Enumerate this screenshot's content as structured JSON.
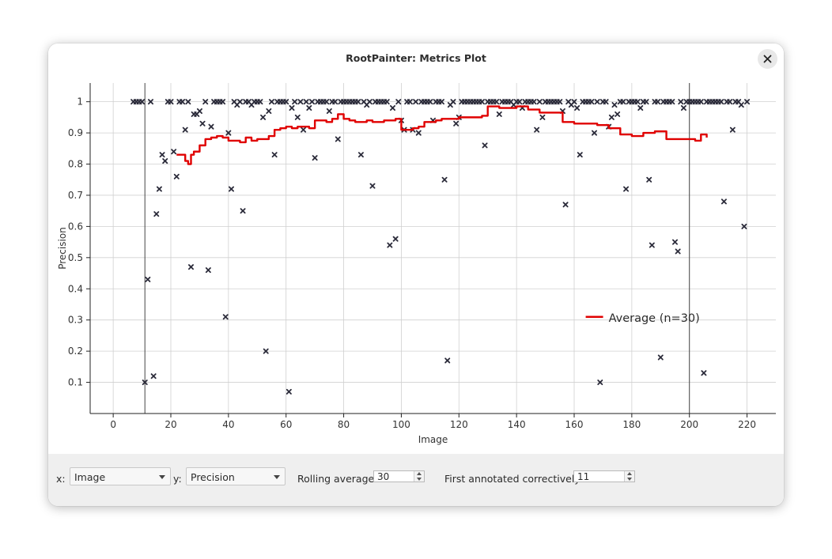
{
  "window": {
    "title": "RootPainter: Metrics Plot"
  },
  "controls": {
    "x_label": "x:",
    "x_value": "Image",
    "y_label": "y:",
    "y_value": "Precision",
    "rolling_label": "Rolling average:",
    "rolling_value": "30",
    "first_label": "First annotated correctively:",
    "first_value": "11"
  },
  "colors": {
    "average_line": "#e00000",
    "points": "#2b2b3a",
    "grid": "#d0d0d0"
  },
  "chart_data": {
    "type": "scatter",
    "xlabel": "Image",
    "ylabel": "Precision",
    "xlim": [
      -8,
      230
    ],
    "ylim": [
      0.0,
      1.06
    ],
    "xticks": [
      0,
      20,
      40,
      60,
      80,
      100,
      120,
      140,
      160,
      180,
      200,
      220
    ],
    "yticks": [
      0.1,
      0.2,
      0.3,
      0.4,
      0.5,
      0.6,
      0.7,
      0.8,
      0.9,
      1
    ],
    "grid": true,
    "vlines": [
      11,
      200
    ],
    "legend": {
      "label": "Average (n=30)",
      "position": "right"
    },
    "points": [
      [
        7,
        1
      ],
      [
        8,
        1
      ],
      [
        9,
        1
      ],
      [
        10,
        1
      ],
      [
        11,
        0.1
      ],
      [
        12,
        0.43
      ],
      [
        13,
        1
      ],
      [
        14,
        0.12
      ],
      [
        15,
        0.64
      ],
      [
        16,
        0.72
      ],
      [
        17,
        0.83
      ],
      [
        18,
        0.81
      ],
      [
        19,
        1
      ],
      [
        20,
        1
      ],
      [
        21,
        0.84
      ],
      [
        22,
        0.76
      ],
      [
        23,
        1
      ],
      [
        24,
        1
      ],
      [
        25,
        0.91
      ],
      [
        26,
        1
      ],
      [
        27,
        0.47
      ],
      [
        28,
        0.96
      ],
      [
        29,
        0.96
      ],
      [
        30,
        0.97
      ],
      [
        31,
        0.93
      ],
      [
        32,
        1
      ],
      [
        33,
        0.46
      ],
      [
        34,
        0.92
      ],
      [
        35,
        1
      ],
      [
        36,
        1
      ],
      [
        37,
        1
      ],
      [
        38,
        1
      ],
      [
        39,
        0.31
      ],
      [
        40,
        0.9
      ],
      [
        41,
        0.72
      ],
      [
        42,
        1
      ],
      [
        43,
        0.99
      ],
      [
        44,
        1
      ],
      [
        45,
        0.65
      ],
      [
        46,
        1
      ],
      [
        47,
        1
      ],
      [
        48,
        0.99
      ],
      [
        49,
        1
      ],
      [
        50,
        1
      ],
      [
        51,
        1
      ],
      [
        52,
        0.95
      ],
      [
        53,
        0.2
      ],
      [
        54,
        0.97
      ],
      [
        55,
        1
      ],
      [
        56,
        0.83
      ],
      [
        57,
        1
      ],
      [
        58,
        1
      ],
      [
        59,
        1
      ],
      [
        60,
        1
      ],
      [
        61,
        0.07
      ],
      [
        62,
        0.98
      ],
      [
        63,
        1
      ],
      [
        64,
        0.95
      ],
      [
        65,
        1
      ],
      [
        66,
        0.91
      ],
      [
        67,
        1
      ],
      [
        68,
        0.98
      ],
      [
        69,
        1
      ],
      [
        70,
        0.82
      ],
      [
        71,
        1
      ],
      [
        72,
        1
      ],
      [
        73,
        1
      ],
      [
        74,
        1
      ],
      [
        75,
        0.97
      ],
      [
        76,
        1
      ],
      [
        77,
        1
      ],
      [
        78,
        0.88
      ],
      [
        79,
        1
      ],
      [
        80,
        1
      ],
      [
        81,
        1
      ],
      [
        82,
        1
      ],
      [
        83,
        1
      ],
      [
        84,
        1
      ],
      [
        85,
        1
      ],
      [
        86,
        0.83
      ],
      [
        87,
        1
      ],
      [
        88,
        0.99
      ],
      [
        89,
        1
      ],
      [
        90,
        0.73
      ],
      [
        91,
        1
      ],
      [
        92,
        1
      ],
      [
        93,
        1
      ],
      [
        94,
        1
      ],
      [
        95,
        1
      ],
      [
        96,
        0.54
      ],
      [
        97,
        0.98
      ],
      [
        98,
        0.56
      ],
      [
        99,
        1
      ],
      [
        100,
        0.94
      ],
      [
        101,
        0.91
      ],
      [
        102,
        1
      ],
      [
        103,
        1
      ],
      [
        104,
        0.91
      ],
      [
        105,
        1
      ],
      [
        106,
        0.9
      ],
      [
        107,
        1
      ],
      [
        108,
        1
      ],
      [
        109,
        1
      ],
      [
        110,
        1
      ],
      [
        111,
        0.94
      ],
      [
        112,
        1
      ],
      [
        113,
        1
      ],
      [
        114,
        1
      ],
      [
        115,
        0.75
      ],
      [
        116,
        0.17
      ],
      [
        117,
        0.99
      ],
      [
        118,
        1
      ],
      [
        119,
        0.93
      ],
      [
        120,
        0.95
      ],
      [
        121,
        1
      ],
      [
        122,
        1
      ],
      [
        123,
        1
      ],
      [
        124,
        1
      ],
      [
        125,
        1
      ],
      [
        126,
        1
      ],
      [
        127,
        1
      ],
      [
        128,
        1
      ],
      [
        129,
        0.86
      ],
      [
        130,
        1
      ],
      [
        131,
        1
      ],
      [
        132,
        1
      ],
      [
        133,
        1
      ],
      [
        134,
        0.96
      ],
      [
        135,
        1
      ],
      [
        136,
        1
      ],
      [
        137,
        1
      ],
      [
        138,
        1
      ],
      [
        139,
        0.99
      ],
      [
        140,
        1
      ],
      [
        141,
        1
      ],
      [
        142,
        0.98
      ],
      [
        143,
        1
      ],
      [
        144,
        1
      ],
      [
        145,
        1
      ],
      [
        146,
        1
      ],
      [
        147,
        0.91
      ],
      [
        148,
        1
      ],
      [
        149,
        0.95
      ],
      [
        150,
        1
      ],
      [
        151,
        1
      ],
      [
        152,
        1
      ],
      [
        153,
        1
      ],
      [
        154,
        1
      ],
      [
        155,
        1
      ],
      [
        156,
        0.97
      ],
      [
        157,
        0.67
      ],
      [
        158,
        1
      ],
      [
        159,
        0.99
      ],
      [
        160,
        1
      ],
      [
        161,
        0.98
      ],
      [
        162,
        0.83
      ],
      [
        163,
        1
      ],
      [
        164,
        1
      ],
      [
        165,
        1
      ],
      [
        166,
        1
      ],
      [
        167,
        0.9
      ],
      [
        168,
        1
      ],
      [
        169,
        0.1
      ],
      [
        170,
        1
      ],
      [
        171,
        1
      ],
      [
        172,
        0.92
      ],
      [
        173,
        0.95
      ],
      [
        174,
        0.99
      ],
      [
        175,
        0.96
      ],
      [
        176,
        1
      ],
      [
        177,
        1
      ],
      [
        178,
        0.72
      ],
      [
        179,
        1
      ],
      [
        180,
        1
      ],
      [
        181,
        1
      ],
      [
        182,
        1
      ],
      [
        183,
        0.98
      ],
      [
        184,
        1
      ],
      [
        185,
        1
      ],
      [
        186,
        0.75
      ],
      [
        187,
        0.54
      ],
      [
        188,
        1
      ],
      [
        189,
        1
      ],
      [
        190,
        0.18
      ],
      [
        191,
        1
      ],
      [
        192,
        1
      ],
      [
        193,
        1
      ],
      [
        194,
        1
      ],
      [
        195,
        0.55
      ],
      [
        196,
        0.52
      ],
      [
        197,
        1
      ],
      [
        198,
        0.98
      ],
      [
        199,
        1
      ],
      [
        200,
        1
      ],
      [
        201,
        1
      ],
      [
        202,
        1
      ],
      [
        203,
        1
      ],
      [
        204,
        1
      ],
      [
        205,
        0.13
      ],
      [
        206,
        1
      ],
      [
        207,
        1
      ],
      [
        208,
        1
      ],
      [
        209,
        1
      ],
      [
        210,
        1
      ],
      [
        211,
        1
      ],
      [
        212,
        0.68
      ],
      [
        213,
        1
      ],
      [
        214,
        1
      ],
      [
        215,
        0.91
      ],
      [
        216,
        1
      ],
      [
        217,
        1
      ],
      [
        218,
        0.99
      ],
      [
        219,
        0.6
      ],
      [
        220,
        1
      ]
    ],
    "average": {
      "name": "Average (n=30)",
      "x": [
        22,
        23,
        24,
        25,
        26,
        27,
        28,
        30,
        32,
        34,
        36,
        38,
        40,
        44,
        46,
        48,
        50,
        54,
        56,
        58,
        60,
        62,
        64,
        68,
        70,
        72,
        74,
        76,
        78,
        80,
        82,
        84,
        86,
        88,
        90,
        92,
        94,
        96,
        98,
        100,
        102,
        104,
        106,
        108,
        110,
        112,
        114,
        116,
        120,
        124,
        128,
        130,
        132,
        134,
        136,
        140,
        144,
        148,
        152,
        156,
        160,
        164,
        168,
        172,
        176,
        180,
        184,
        188,
        192,
        196,
        200,
        202,
        204,
        206
      ],
      "y": [
        0.83,
        0.83,
        0.83,
        0.81,
        0.8,
        0.83,
        0.84,
        0.86,
        0.88,
        0.885,
        0.89,
        0.885,
        0.875,
        0.87,
        0.885,
        0.875,
        0.88,
        0.89,
        0.91,
        0.915,
        0.92,
        0.915,
        0.92,
        0.915,
        0.94,
        0.94,
        0.935,
        0.945,
        0.96,
        0.945,
        0.94,
        0.935,
        0.935,
        0.94,
        0.935,
        0.935,
        0.94,
        0.94,
        0.945,
        0.91,
        0.91,
        0.915,
        0.92,
        0.935,
        0.935,
        0.94,
        0.945,
        0.945,
        0.95,
        0.95,
        0.955,
        0.985,
        0.985,
        0.98,
        0.98,
        0.985,
        0.975,
        0.965,
        0.965,
        0.935,
        0.93,
        0.93,
        0.925,
        0.915,
        0.895,
        0.89,
        0.9,
        0.905,
        0.88,
        0.88,
        0.88,
        0.875,
        0.895,
        0.885
      ]
    }
  }
}
